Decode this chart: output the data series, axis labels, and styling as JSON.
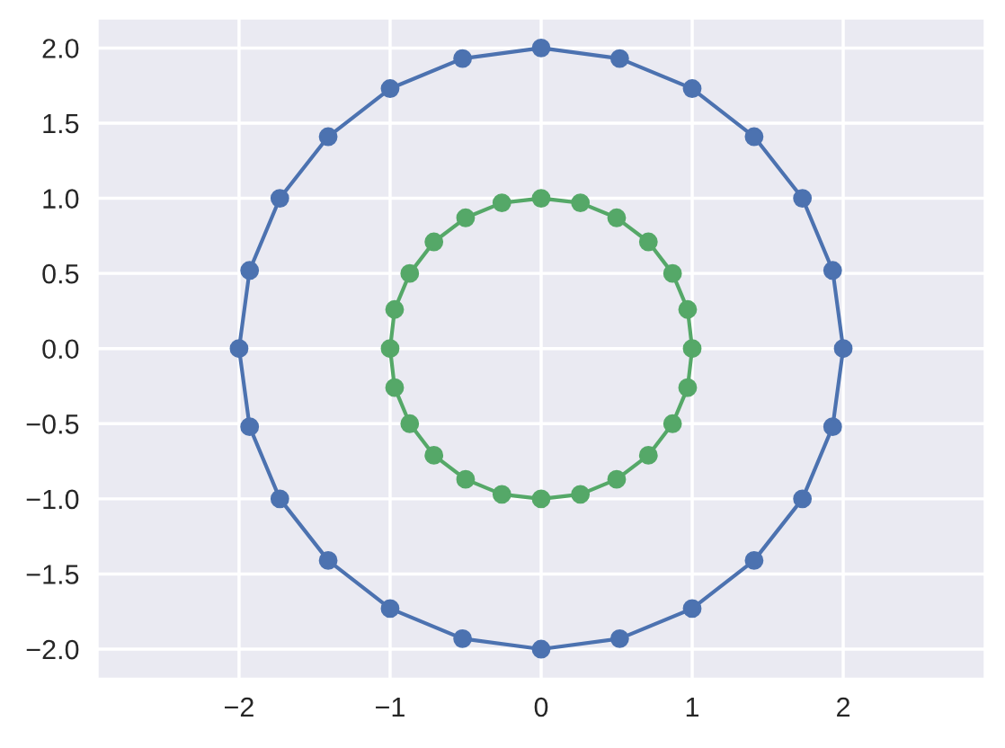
{
  "chart_data": {
    "type": "scatter",
    "marker": "circle",
    "line_style": "solid",
    "grid": true,
    "xlim": [
      -2.94,
      2.94
    ],
    "ylim": [
      -2.2,
      2.2
    ],
    "xticks": [
      {
        "value": -2,
        "label": "−2"
      },
      {
        "value": -1,
        "label": "−1"
      },
      0,
      1,
      2
    ],
    "yticks": [
      {
        "value": -2.0,
        "label": "−2.0"
      },
      {
        "value": -1.5,
        "label": "−1.5"
      },
      {
        "value": -1.0,
        "label": "−1.0"
      },
      {
        "value": -0.5,
        "label": "−0.5"
      },
      {
        "value": 0,
        "label": "0.0"
      },
      0.5,
      {
        "value": 1,
        "label": "1.0"
      },
      1.5,
      {
        "value": 2,
        "label": "2.0"
      }
    ],
    "series": [
      {
        "color": "#4c72b0",
        "x": [
          2,
          1.93,
          1.73,
          1.41,
          1.0,
          0.52,
          0,
          -0.52,
          -1.0,
          -1.41,
          -1.73,
          -1.93,
          -2,
          -1.93,
          -1.73,
          -1.41,
          -1.0,
          -0.52,
          0,
          0.52,
          1.0,
          1.41,
          1.73,
          1.93
        ],
        "values": [
          0,
          0.52,
          1.0,
          1.41,
          1.73,
          1.93,
          2,
          1.93,
          1.73,
          1.41,
          1.0,
          0.52,
          0,
          -0.52,
          -1.0,
          -1.41,
          -1.73,
          -1.93,
          -2,
          -1.93,
          -1.73,
          -1.41,
          -1.0,
          -0.52
        ]
      },
      {
        "color": "#55a868",
        "x": [
          1,
          0.97,
          0.87,
          0.71,
          0.5,
          0.26,
          0,
          -0.26,
          -0.5,
          -0.71,
          -0.87,
          -0.97,
          -1,
          -0.97,
          -0.87,
          -0.71,
          -0.5,
          -0.26,
          0,
          0.26,
          0.5,
          0.71,
          0.87,
          0.97
        ],
        "values": [
          0,
          0.26,
          0.5,
          0.71,
          0.87,
          0.97,
          1,
          0.97,
          0.87,
          0.71,
          0.5,
          0.26,
          0,
          -0.26,
          -0.5,
          -0.71,
          -0.87,
          -0.97,
          -1,
          -0.97,
          -0.87,
          -0.71,
          -0.5,
          -0.26
        ]
      }
    ]
  }
}
